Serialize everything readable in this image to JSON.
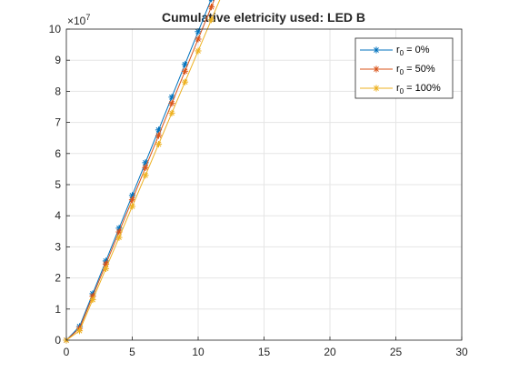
{
  "chart_data": {
    "type": "line",
    "title": "Cumulative eletricity used: LED B",
    "xlabel": "",
    "ylabel": "",
    "xlim": [
      0,
      30
    ],
    "ylim": [
      0,
      10
    ],
    "y_exponent_label": "×10",
    "y_exponent_power": "7",
    "x_ticks": [
      "0",
      "5",
      "10",
      "15",
      "20",
      "25",
      "30"
    ],
    "y_ticks": [
      "0",
      "1",
      "2",
      "3",
      "4",
      "5",
      "6",
      "7",
      "8",
      "9",
      "10"
    ],
    "grid": true,
    "legend_position": "top-right",
    "marker": "asterisk",
    "x": [
      0,
      1,
      2,
      3,
      4,
      5,
      6,
      7,
      8,
      9,
      10,
      11,
      12,
      13,
      14,
      15,
      16,
      17,
      18,
      19,
      20,
      21,
      22,
      23,
      24,
      25,
      26,
      27,
      28,
      29,
      30
    ],
    "series": [
      {
        "name": "r_0 = 0%",
        "legend_main": "r",
        "legend_sub": "0",
        "legend_rest": " = 0%",
        "color": "#0072BD",
        "slope": 3.16,
        "first": 0.44
      },
      {
        "name": "r_0 = 50%",
        "legend_main": "r",
        "legend_sub": "0",
        "legend_rest": " = 50%",
        "color": "#D95319",
        "slope": 3.1,
        "first": 0.38
      },
      {
        "name": "r_0 = 100%",
        "legend_main": "r",
        "legend_sub": "0",
        "legend_rest": " = 100%",
        "color": "#EDB120",
        "slope": 3.0,
        "first": 0.3
      }
    ]
  }
}
